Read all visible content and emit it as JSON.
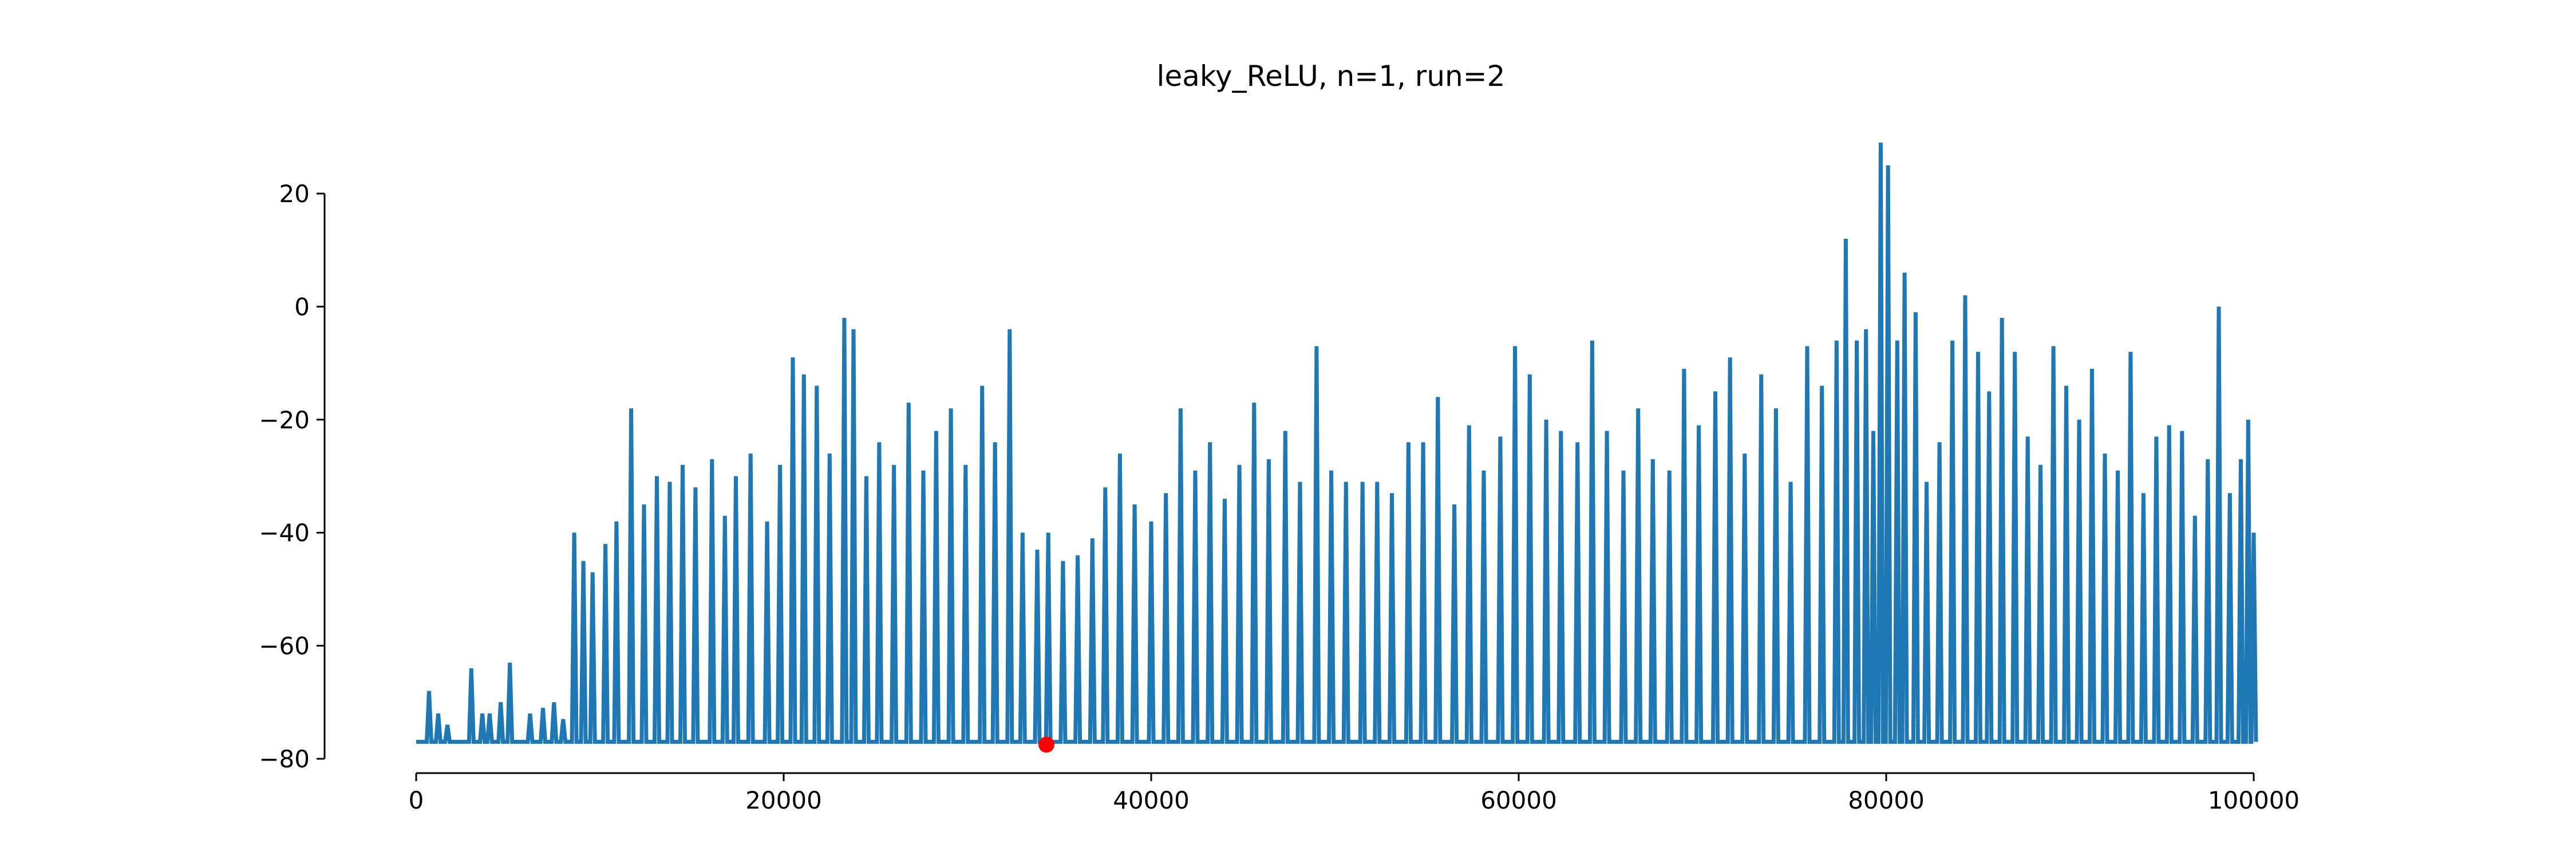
{
  "chart_data": {
    "type": "line",
    "title": "leaky_ReLU, n=1, run=2",
    "xlabel": "",
    "ylabel": "",
    "xlim": [
      0,
      100000
    ],
    "ylim": [
      -80,
      20
    ],
    "xticks": [
      0,
      20000,
      40000,
      60000,
      80000,
      100000
    ],
    "yticks": [
      -80,
      -60,
      -40,
      -20,
      0,
      20
    ],
    "xtick_labels": [
      "0",
      "20000",
      "40000",
      "60000",
      "80000",
      "100000"
    ],
    "ytick_labels": [
      "−80",
      "−60",
      "−40",
      "−20",
      "0",
      "20"
    ],
    "grid": false,
    "legend": false,
    "baseline": -77,
    "series": [
      {
        "color": "#1f77b4",
        "x": [
          0,
          700,
          1200,
          1700,
          3000,
          3600,
          4000,
          4600,
          5100,
          6200,
          6900,
          7500,
          8000,
          8600,
          9100,
          9600,
          10300,
          10900,
          11700,
          12400,
          13100,
          13800,
          14500,
          15200,
          16100,
          16800,
          17400,
          18200,
          19100,
          19800,
          20500,
          21100,
          21800,
          22500,
          23300,
          23800,
          24500,
          25200,
          26000,
          26800,
          27600,
          28300,
          29100,
          29900,
          30800,
          31500,
          32300,
          33000,
          33800,
          34400,
          35200,
          36000,
          36800,
          37500,
          38300,
          39100,
          40000,
          40800,
          41600,
          42400,
          43200,
          44000,
          44800,
          45600,
          46400,
          47300,
          48100,
          49000,
          49800,
          50600,
          51500,
          52300,
          53100,
          54000,
          54800,
          55600,
          56500,
          57300,
          58100,
          59000,
          59800,
          60600,
          61500,
          62300,
          63200,
          64000,
          64800,
          65700,
          66500,
          67300,
          68200,
          69000,
          69800,
          70700,
          71500,
          72300,
          73200,
          74000,
          74800,
          75700,
          76500,
          77300,
          77800,
          78400,
          78900,
          79300,
          79700,
          80100,
          80600,
          81000,
          81600,
          82200,
          82900,
          83600,
          84300,
          85000,
          85600,
          86300,
          87000,
          87700,
          88400,
          89100,
          89800,
          90500,
          91200,
          91900,
          92600,
          93300,
          94000,
          94700,
          95400,
          96100,
          96800,
          97500,
          98100,
          98700,
          99300,
          99700,
          100000
        ],
        "y": [
          -77,
          -68,
          -72,
          -74,
          -64,
          -72,
          -72,
          -70,
          -63,
          -72,
          -71,
          -70,
          -73,
          -40,
          -45,
          -47,
          -42,
          -38,
          -18,
          -35,
          -30,
          -31,
          -28,
          -32,
          -27,
          -37,
          -30,
          -26,
          -38,
          -28,
          -9,
          -12,
          -14,
          -26,
          -2,
          -4,
          -30,
          -24,
          -28,
          -17,
          -29,
          -22,
          -18,
          -28,
          -14,
          -24,
          -4,
          -40,
          -43,
          -40,
          -45,
          -44,
          -41,
          -32,
          -26,
          -35,
          -38,
          -33,
          -18,
          -29,
          -24,
          -34,
          -28,
          -17,
          -27,
          -22,
          -31,
          -7,
          -29,
          -31,
          -31,
          -31,
          -33,
          -24,
          -24,
          -16,
          -35,
          -21,
          -29,
          -23,
          -7,
          -12,
          -20,
          -22,
          -24,
          -6,
          -22,
          -29,
          -18,
          -27,
          -29,
          -11,
          -21,
          -15,
          -9,
          -26,
          -12,
          -18,
          -31,
          -7,
          -14,
          -6,
          12,
          -6,
          -4,
          -22,
          29,
          25,
          -6,
          6,
          -1,
          -31,
          -24,
          -6,
          2,
          -8,
          -15,
          -2,
          -8,
          -23,
          -28,
          -7,
          -14,
          -20,
          -11,
          -26,
          -29,
          -8,
          -33,
          -23,
          -21,
          -22,
          -37,
          -27,
          0,
          -33,
          -27,
          -20,
          -40
        ]
      }
    ],
    "markers": [
      {
        "x": 34300,
        "y": -77.5,
        "color": "#ff0000"
      }
    ]
  }
}
